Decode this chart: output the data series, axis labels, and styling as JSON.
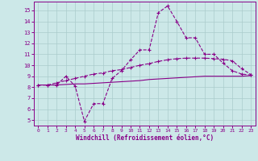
{
  "xlabel": "Windchill (Refroidissement éolien,°C)",
  "background_color": "#cce8e8",
  "line_color": "#880088",
  "grid_color": "#aacccc",
  "xlim": [
    -0.5,
    23.5
  ],
  "ylim": [
    4.5,
    15.8
  ],
  "xticks": [
    0,
    1,
    2,
    3,
    4,
    5,
    6,
    7,
    8,
    9,
    10,
    11,
    12,
    13,
    14,
    15,
    16,
    17,
    18,
    19,
    20,
    21,
    22,
    23
  ],
  "yticks": [
    5,
    6,
    7,
    8,
    9,
    10,
    11,
    12,
    13,
    14,
    15
  ],
  "series1_x": [
    0,
    1,
    2,
    3,
    4,
    5,
    6,
    7,
    8,
    9,
    10,
    11,
    12,
    13,
    14,
    15,
    16,
    17,
    18,
    19,
    20,
    21,
    22,
    23
  ],
  "series1_y": [
    8.2,
    8.2,
    8.2,
    9.0,
    8.1,
    4.9,
    6.5,
    6.5,
    8.8,
    9.5,
    10.5,
    11.4,
    11.4,
    14.8,
    15.4,
    14.0,
    12.5,
    12.5,
    11.0,
    11.0,
    10.2,
    9.5,
    9.2,
    9.1
  ],
  "series2_x": [
    0,
    1,
    2,
    3,
    4,
    5,
    6,
    7,
    8,
    9,
    10,
    11,
    12,
    13,
    14,
    15,
    16,
    17,
    18,
    19,
    20,
    21,
    22,
    23
  ],
  "series2_y": [
    8.2,
    8.2,
    8.4,
    8.6,
    8.8,
    9.0,
    9.2,
    9.3,
    9.5,
    9.6,
    9.8,
    10.0,
    10.15,
    10.35,
    10.5,
    10.6,
    10.65,
    10.65,
    10.65,
    10.6,
    10.55,
    10.4,
    9.7,
    9.15
  ],
  "series3_x": [
    0,
    1,
    2,
    3,
    4,
    5,
    6,
    7,
    8,
    9,
    10,
    11,
    12,
    13,
    14,
    15,
    16,
    17,
    18,
    19,
    20,
    21,
    22,
    23
  ],
  "series3_y": [
    8.2,
    8.2,
    8.2,
    8.25,
    8.3,
    8.3,
    8.35,
    8.4,
    8.45,
    8.5,
    8.55,
    8.6,
    8.7,
    8.75,
    8.8,
    8.85,
    8.9,
    8.95,
    9.0,
    9.0,
    9.0,
    9.0,
    9.0,
    9.05
  ]
}
